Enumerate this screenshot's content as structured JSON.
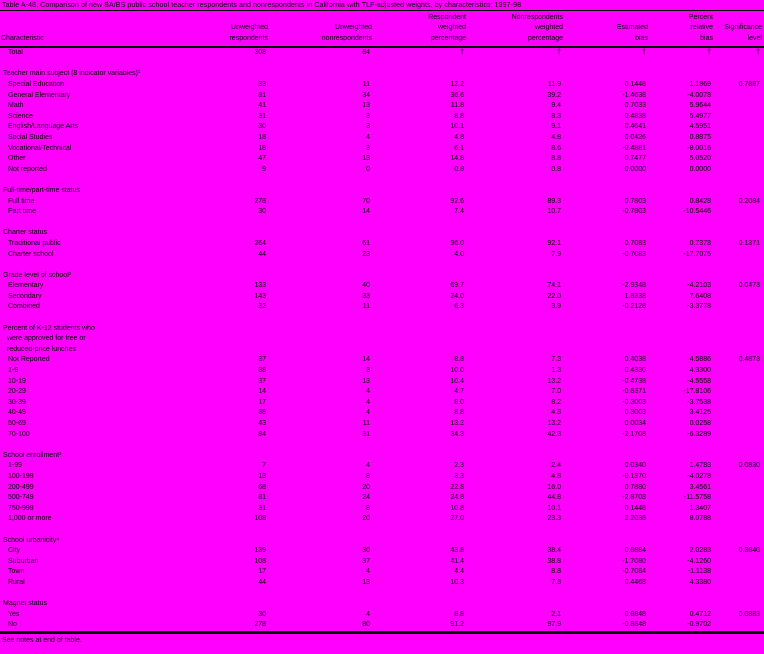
{
  "title": "Table A-48. Comparison of new BA/BS public school teacher respondents and nonrespondents in California with TLF-adjusted weights, by characteristics: 1997-98",
  "footer": "See notes at end of table.",
  "colors": {
    "background": "#FF00FF",
    "text": "#000000",
    "rule": "#000000"
  },
  "columns": [
    "Characteristic",
    "Unweighted\nrespondents",
    "Unweighted\nnonrespondents",
    "Respondent\nweighted\npercentage",
    "Nonrespondents\nweighted\npercentage",
    "Estimated\nbias",
    "Percent\nrelative\nbias",
    "Significance\nlevel"
  ],
  "table": {
    "rows": [
      {
        "type": "data",
        "label": "Total",
        "values": [
          "308",
          "84",
          "†",
          "†",
          "†",
          "†",
          "†"
        ]
      },
      {
        "type": "blank"
      },
      {
        "type": "section",
        "label": "Teacher main subject (8 indicator variables)¹"
      },
      {
        "type": "data",
        "label": "Special Education",
        "values": [
          "33",
          "11",
          "12.2",
          "11.9",
          "0.1448",
          "1.1869",
          "0.7887"
        ]
      },
      {
        "type": "data",
        "label": "General Elementary",
        "values": [
          "81",
          "34",
          "36.6",
          "39.2",
          "-1.4638",
          "-4.0078",
          ""
        ]
      },
      {
        "type": "data",
        "label": "Math",
        "values": [
          "41",
          "13",
          "11.8",
          "9.4",
          "0.7033",
          "5.9644",
          ""
        ]
      },
      {
        "type": "data",
        "label": "Science",
        "values": [
          "31",
          "3",
          "8.8",
          "8.3",
          "0.4838",
          "5.4977",
          ""
        ]
      },
      {
        "type": "data",
        "label": "English/Language Arts",
        "values": [
          "30",
          "3",
          "10.1",
          "9.1",
          "0.4641",
          "4.5951",
          ""
        ]
      },
      {
        "type": "data",
        "label": "Social Studies",
        "values": [
          "18",
          "4",
          "4.8",
          "4.8",
          "0.0426",
          "0.8875",
          ""
        ]
      },
      {
        "type": "data",
        "label": "Vocational/Technical",
        "values": [
          "18",
          "3",
          "6.1",
          "8.6",
          "-0.4881",
          "-8.0016",
          ""
        ]
      },
      {
        "type": "data",
        "label": "Other",
        "values": [
          "47",
          "13",
          "14.8",
          "8.8",
          "0.7477",
          "5.0520",
          ""
        ]
      },
      {
        "type": "data",
        "label": "Not reported",
        "values": [
          "9",
          "0",
          "0.8",
          "0.8",
          "0.0000",
          "0.0000",
          ""
        ]
      },
      {
        "type": "blank"
      },
      {
        "type": "section",
        "label": "Full-time/part-time status"
      },
      {
        "type": "data",
        "label": "Full time",
        "values": [
          "278",
          "70",
          "92.6",
          "89.3",
          "0.7803",
          "0.8428",
          "0.2084"
        ]
      },
      {
        "type": "data",
        "label": "Part time",
        "values": [
          "30",
          "14",
          "7.4",
          "10.7",
          "-0.7803",
          "-10.5446",
          ""
        ]
      },
      {
        "type": "blank"
      },
      {
        "type": "section",
        "label": "Charter status"
      },
      {
        "type": "data",
        "label": "Traditional public",
        "values": [
          "264",
          "61",
          "96.0",
          "92.1",
          "0.7083",
          "0.7378",
          "0.1371"
        ]
      },
      {
        "type": "data",
        "label": "Charter school",
        "values": [
          "44",
          "23",
          "4.0",
          "7.9",
          "-0.7083",
          "-17.7075",
          ""
        ]
      },
      {
        "type": "blank"
      },
      {
        "type": "section",
        "label": "Grade level of school²"
      },
      {
        "type": "data",
        "label": "Elementary",
        "values": [
          "133",
          "40",
          "69.7",
          "74.1",
          "-2.9348",
          "-4.2103",
          "0.0473"
        ]
      },
      {
        "type": "data",
        "label": "Secondary",
        "values": [
          "143",
          "33",
          "24.0",
          "22.0",
          "1.8338",
          "7.6408",
          ""
        ]
      },
      {
        "type": "data",
        "label": "Combined",
        "values": [
          "32",
          "11",
          "6.3",
          "3.9",
          "-0.2128",
          "-3.3778",
          ""
        ]
      },
      {
        "type": "blank"
      },
      {
        "type": "section",
        "label": "Percent of K-12 students who"
      },
      {
        "type": "wrap",
        "label": "were approved for free or"
      },
      {
        "type": "wrap",
        "label": "reduced-price lunches"
      },
      {
        "type": "data",
        "label": "Not Reported",
        "values": [
          "37",
          "14",
          "8.8",
          "7.3",
          "0.4038",
          "4.5886",
          "0.4873"
        ]
      },
      {
        "type": "data",
        "label": "1-9",
        "values": [
          "38",
          "3",
          "10.0",
          "1.3",
          "0.4330",
          "4.3300",
          ""
        ]
      },
      {
        "type": "data",
        "label": "10-19",
        "values": [
          "37",
          "13",
          "10.4",
          "13.2",
          "-0.4738",
          "-4.5558",
          ""
        ]
      },
      {
        "type": "data",
        "label": "20-29",
        "values": [
          "14",
          "4",
          "4.7",
          "7.0",
          "-0.8371",
          "-17.8106",
          ""
        ]
      },
      {
        "type": "data",
        "label": "30-39",
        "values": [
          "17",
          "4",
          "8.0",
          "8.2",
          "-0.3003",
          "-3.7538",
          ""
        ]
      },
      {
        "type": "data",
        "label": "40-49",
        "values": [
          "38",
          "4",
          "8.8",
          "4.8",
          "0.3003",
          "3.4125",
          ""
        ]
      },
      {
        "type": "data",
        "label": "50-69",
        "values": [
          "43",
          "11",
          "13.2",
          "13.2",
          "0.0034",
          "0.0258",
          ""
        ]
      },
      {
        "type": "data",
        "label": "70-100",
        "values": [
          "84",
          "31",
          "34.3",
          "42.3",
          "-2.1708",
          "-6.3289",
          ""
        ]
      },
      {
        "type": "blank"
      },
      {
        "type": "section",
        "label": "School enrollment³"
      },
      {
        "type": "data",
        "label": "1-99",
        "values": [
          "7",
          "4",
          "2.3",
          "2.4",
          "0.0340",
          "1.4783",
          "0.0830"
        ]
      },
      {
        "type": "data",
        "label": "100-199",
        "values": [
          "13",
          "8",
          "3.3",
          "4.8",
          "-0.1370",
          "-4.0278",
          ""
        ]
      },
      {
        "type": "data",
        "label": "200-499",
        "values": [
          "68",
          "20",
          "22.8",
          "16.0",
          "0.7880",
          "3.4561",
          ""
        ]
      },
      {
        "type": "data",
        "label": "500-749",
        "values": [
          "81",
          "24",
          "24.8",
          "44.8",
          "-2.8708",
          "-11.5758",
          ""
        ]
      },
      {
        "type": "data",
        "label": "750-999",
        "values": [
          "31",
          "8",
          "10.8",
          "10.1",
          "0.1448",
          "1.3407",
          ""
        ]
      },
      {
        "type": "data",
        "label": "1,000 or more",
        "values": [
          "108",
          "20",
          "27.0",
          "23.3",
          "2.2038",
          "8.0788",
          ""
        ]
      },
      {
        "type": "blank"
      },
      {
        "type": "section",
        "label": "School urbanicity⁴"
      },
      {
        "type": "data",
        "label": "City",
        "values": [
          "139",
          "30",
          "43.8",
          "38.4",
          "0.8884",
          "2.0283",
          "0.3840"
        ]
      },
      {
        "type": "data",
        "label": "Suburban",
        "values": [
          "108",
          "37",
          "41.4",
          "38.8",
          "-1.7080",
          "-4.1260",
          ""
        ]
      },
      {
        "type": "data",
        "label": "Town",
        "values": [
          "17",
          "4",
          "4.4",
          "8.8",
          "-0.7084",
          "-1.1138",
          ""
        ]
      },
      {
        "type": "data",
        "label": "Rural",
        "values": [
          "44",
          "13",
          "10.3",
          "7.8",
          "0.4468",
          "4.3380",
          ""
        ]
      },
      {
        "type": "blank"
      },
      {
        "type": "section",
        "label": "Magnet status"
      },
      {
        "type": "data",
        "label": "Yes",
        "values": [
          "30",
          "4",
          "8.8",
          "2.1",
          "0.8848",
          "0.4712",
          "0.0883"
        ]
      },
      {
        "type": "data",
        "label": "No",
        "values": [
          "278",
          "80",
          "91.2",
          "97.9",
          "-0.8848",
          "-0.9702",
          ""
        ]
      }
    ]
  }
}
